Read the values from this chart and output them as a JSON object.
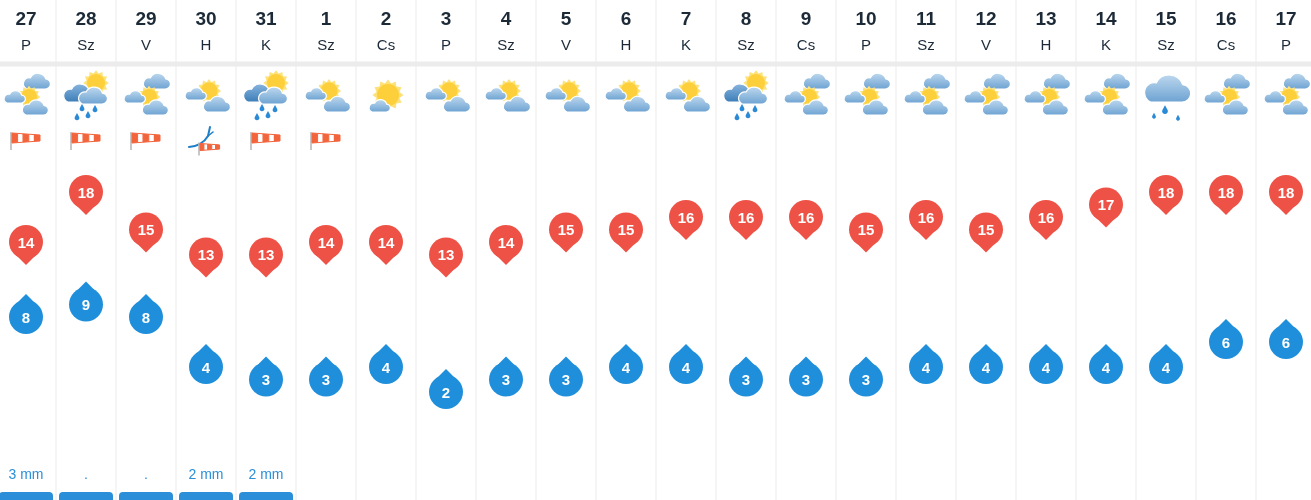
{
  "chart_data": {
    "type": "scatter",
    "categories": [
      "27\nP",
      "28\nSz",
      "29\nV",
      "30\nH",
      "31\nK",
      "1\nSz",
      "2\nCs",
      "3\nP",
      "4\nSz",
      "5\nV",
      "6\nH",
      "7\nK",
      "8\nSz",
      "9\nCs",
      "10\nP",
      "11\nSz",
      "12\nV",
      "13\nH",
      "14\nK",
      "15\nSz",
      "16\nCs",
      "17\nP"
    ],
    "series": [
      {
        "color": "#ee5246",
        "values": [
          14,
          18,
          15,
          13,
          13,
          14,
          14,
          13,
          14,
          15,
          15,
          16,
          16,
          16,
          15,
          16,
          15,
          16,
          17,
          18,
          18,
          18
        ]
      },
      {
        "color": "#1f8fdb",
        "values": [
          8,
          9,
          8,
          4,
          3,
          3,
          4,
          2,
          3,
          3,
          4,
          4,
          3,
          3,
          3,
          4,
          4,
          4,
          4,
          4,
          6,
          6
        ]
      }
    ],
    "annotations": [
      "3 mm",
      ".",
      ".",
      "2 mm",
      "2 mm"
    ],
    "data_labels": true,
    "marker": "circle",
    "grid": "x",
    "tick_labels": "x"
  }
}
